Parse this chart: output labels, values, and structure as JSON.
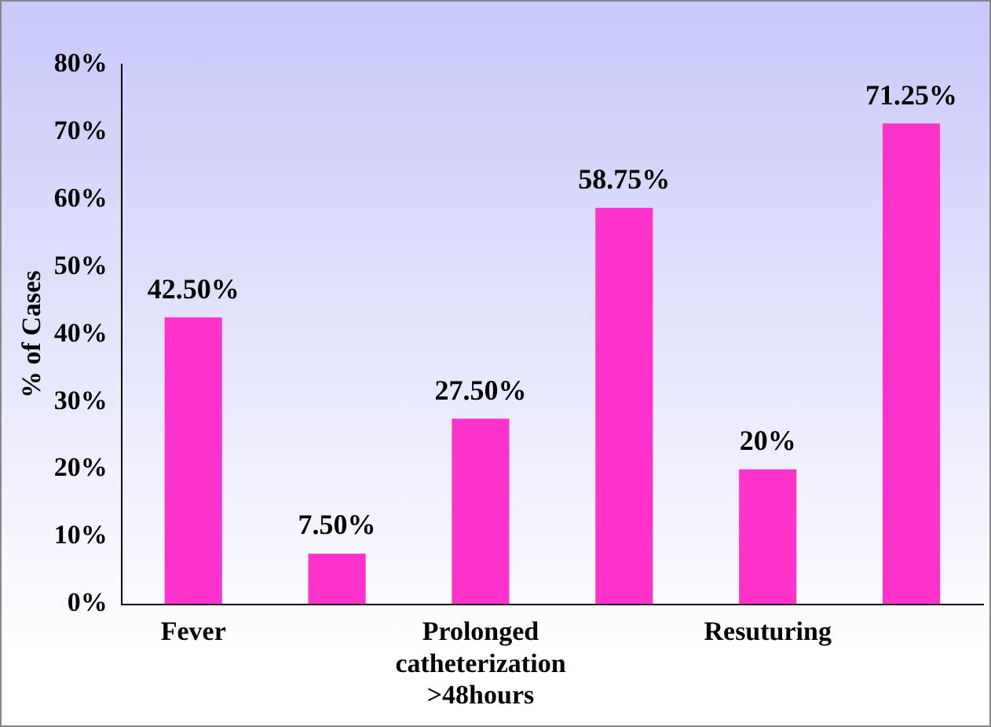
{
  "chart_data": {
    "type": "bar",
    "categories": [
      "Fever",
      null,
      "Prolonged catheterization >48hours",
      null,
      "Resuturing",
      null
    ],
    "values": [
      42.5,
      7.5,
      27.5,
      58.75,
      20,
      71.25
    ],
    "value_labels": [
      "42.50%",
      "7.50%",
      "27.50%",
      "58.75%",
      "20%",
      "71.25%"
    ],
    "color": "#ff33cc",
    "ylabel": "% of Cases",
    "ylim": [
      0,
      80
    ],
    "yticks": [
      {
        "value": 0,
        "label": "0%"
      },
      {
        "value": 10,
        "label": "10%"
      },
      {
        "value": 20,
        "label": "20%"
      },
      {
        "value": 30,
        "label": "30%"
      },
      {
        "value": 40,
        "label": "40%"
      },
      {
        "value": 50,
        "label": "50%"
      },
      {
        "value": 60,
        "label": "60%"
      },
      {
        "value": 70,
        "label": "70%"
      },
      {
        "value": 80,
        "label": "80%"
      }
    ],
    "grid": false,
    "legend": false
  }
}
